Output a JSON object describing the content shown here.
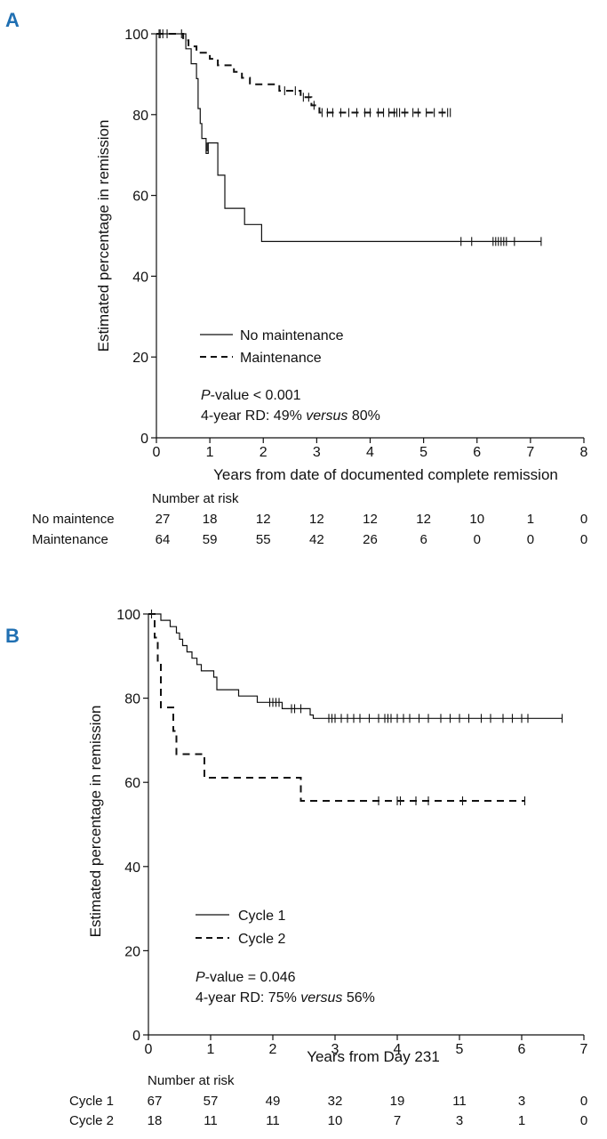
{
  "chart_data": [
    {
      "panel": "A",
      "type": "line",
      "subtype": "kaplan-meier",
      "ylabel": "Estimated percentage in remission",
      "xlabel": "Years from date of documented complete remission",
      "xlim": [
        0,
        8
      ],
      "ylim": [
        0,
        100
      ],
      "xticks": [
        0,
        1,
        2,
        3,
        4,
        5,
        6,
        7,
        8
      ],
      "yticks": [
        0,
        20,
        40,
        60,
        80,
        100
      ],
      "legend": {
        "placement": "middle-left",
        "entries": [
          {
            "label": "No maintenance",
            "style": "solid"
          },
          {
            "label": "Maintenance",
            "style": "dashed"
          }
        ]
      },
      "annotation": {
        "pvalue_italic": "P",
        "pvalue_rest": "-value < 0.001",
        "rd_prefix": "4-year RD: 49% ",
        "rd_italic": "versus",
        "rd_suffix": " 80%"
      },
      "series": [
        {
          "name": "No maintenance",
          "style": "solid",
          "steps": [
            [
              0,
              100
            ],
            [
              0.5,
              100
            ],
            [
              0.55,
              96.3
            ],
            [
              0.65,
              92.6
            ],
            [
              0.75,
              88.9
            ],
            [
              0.78,
              81.5
            ],
            [
              0.82,
              77.8
            ],
            [
              0.85,
              74.1
            ],
            [
              0.93,
              70.4
            ],
            [
              0.97,
              73
            ],
            [
              1.15,
              65
            ],
            [
              1.28,
              56.8
            ],
            [
              1.65,
              52.8
            ],
            [
              1.97,
              48.6
            ],
            [
              7.2,
              48.6
            ]
          ],
          "censor": [
            [
              0.07,
              100
            ],
            [
              0.12,
              100
            ],
            [
              0.2,
              100
            ],
            [
              0.47,
              100
            ],
            [
              0.95,
              72
            ],
            [
              5.7,
              48.6
            ],
            [
              5.9,
              48.6
            ],
            [
              6.3,
              48.6
            ],
            [
              6.35,
              48.6
            ],
            [
              6.4,
              48.6
            ],
            [
              6.45,
              48.6
            ],
            [
              6.5,
              48.6
            ],
            [
              6.55,
              48.6
            ],
            [
              6.7,
              48.6
            ],
            [
              7.2,
              48.6
            ]
          ]
        },
        {
          "name": "Maintenance",
          "style": "dashed",
          "steps": [
            [
              0,
              100
            ],
            [
              0.45,
              100
            ],
            [
              0.5,
              98.4
            ],
            [
              0.6,
              96.9
            ],
            [
              0.75,
              95.3
            ],
            [
              1.0,
              93.8
            ],
            [
              1.15,
              92.2
            ],
            [
              1.45,
              90.6
            ],
            [
              1.6,
              89.1
            ],
            [
              1.75,
              87.5
            ],
            [
              2.3,
              85.9
            ],
            [
              2.7,
              84.3
            ],
            [
              2.9,
              82.3
            ],
            [
              3.05,
              80.5
            ],
            [
              5.5,
              80.5
            ]
          ],
          "censor": [
            [
              0.05,
              100
            ],
            [
              2.4,
              85.9
            ],
            [
              2.6,
              85.9
            ],
            [
              2.75,
              84.3
            ],
            [
              2.85,
              84.3
            ],
            [
              2.95,
              82.3
            ],
            [
              3.1,
              80.5
            ],
            [
              3.2,
              80.5
            ],
            [
              3.3,
              80.5
            ],
            [
              3.45,
              80.5
            ],
            [
              3.6,
              80.5
            ],
            [
              3.75,
              80.5
            ],
            [
              3.9,
              80.5
            ],
            [
              4.0,
              80.5
            ],
            [
              4.15,
              80.5
            ],
            [
              4.25,
              80.5
            ],
            [
              4.35,
              80.5
            ],
            [
              4.45,
              80.5
            ],
            [
              4.5,
              80.5
            ],
            [
              4.55,
              80.5
            ],
            [
              4.65,
              80.5
            ],
            [
              4.8,
              80.5
            ],
            [
              4.9,
              80.5
            ],
            [
              5.05,
              80.5
            ],
            [
              5.2,
              80.5
            ],
            [
              5.35,
              80.5
            ],
            [
              5.45,
              80.5
            ],
            [
              5.5,
              80.5
            ]
          ]
        }
      ],
      "risk_table": {
        "title": "Number at risk",
        "rows": [
          {
            "label": "No maintence",
            "values": [
              "27",
              "18",
              "12",
              "12",
              "12",
              "12",
              "10",
              "1",
              "0"
            ]
          },
          {
            "label": "Maintenance",
            "values": [
              "64",
              "59",
              "55",
              "42",
              "26",
              "6",
              "0",
              "0",
              "0"
            ]
          }
        ]
      }
    },
    {
      "panel": "B",
      "type": "line",
      "subtype": "kaplan-meier",
      "ylabel": "Estimated percentage in remission",
      "xlabel": "Years from Day 231",
      "xlim": [
        0,
        7
      ],
      "ylim": [
        0,
        100
      ],
      "xticks": [
        0,
        1,
        2,
        3,
        4,
        5,
        6,
        7
      ],
      "yticks": [
        0,
        20,
        40,
        60,
        80,
        100
      ],
      "legend": {
        "placement": "middle-left",
        "entries": [
          {
            "label": "Cycle 1",
            "style": "solid"
          },
          {
            "label": "Cycle 2",
            "style": "dashed"
          }
        ]
      },
      "annotation": {
        "pvalue_italic": "P",
        "pvalue_rest": "-value = 0.046",
        "rd_prefix": "4-year RD: 75% ",
        "rd_italic": "versus",
        "rd_suffix": " 56%"
      },
      "series": [
        {
          "name": "Cycle 1",
          "style": "solid",
          "steps": [
            [
              0,
              100
            ],
            [
              0.15,
              100
            ],
            [
              0.2,
              98.5
            ],
            [
              0.35,
              97
            ],
            [
              0.45,
              95.5
            ],
            [
              0.5,
              94
            ],
            [
              0.55,
              92.5
            ],
            [
              0.62,
              91
            ],
            [
              0.7,
              89.5
            ],
            [
              0.78,
              88
            ],
            [
              0.85,
              86.5
            ],
            [
              1.05,
              85
            ],
            [
              1.1,
              82
            ],
            [
              1.45,
              80.5
            ],
            [
              1.75,
              79
            ],
            [
              2.15,
              77.5
            ],
            [
              2.6,
              76
            ],
            [
              2.65,
              75.2
            ],
            [
              6.65,
              75.2
            ]
          ],
          "censor": [
            [
              0.05,
              100
            ],
            [
              1.95,
              79
            ],
            [
              2.0,
              79
            ],
            [
              2.05,
              79
            ],
            [
              2.1,
              79
            ],
            [
              2.3,
              77.5
            ],
            [
              2.35,
              77.5
            ],
            [
              2.45,
              77.5
            ],
            [
              2.9,
              75.2
            ],
            [
              2.95,
              75.2
            ],
            [
              3.0,
              75.2
            ],
            [
              3.1,
              75.2
            ],
            [
              3.2,
              75.2
            ],
            [
              3.3,
              75.2
            ],
            [
              3.4,
              75.2
            ],
            [
              3.55,
              75.2
            ],
            [
              3.7,
              75.2
            ],
            [
              3.8,
              75.2
            ],
            [
              3.85,
              75.2
            ],
            [
              3.9,
              75.2
            ],
            [
              4.0,
              75.2
            ],
            [
              4.1,
              75.2
            ],
            [
              4.2,
              75.2
            ],
            [
              4.35,
              75.2
            ],
            [
              4.5,
              75.2
            ],
            [
              4.7,
              75.2
            ],
            [
              4.85,
              75.2
            ],
            [
              5.0,
              75.2
            ],
            [
              5.15,
              75.2
            ],
            [
              5.35,
              75.2
            ],
            [
              5.5,
              75.2
            ],
            [
              5.7,
              75.2
            ],
            [
              5.85,
              75.2
            ],
            [
              6.0,
              75.2
            ],
            [
              6.1,
              75.2
            ],
            [
              6.65,
              75.2
            ]
          ]
        },
        {
          "name": "Cycle 2",
          "style": "dashed",
          "steps": [
            [
              0,
              100
            ],
            [
              0.07,
              100
            ],
            [
              0.1,
              94.4
            ],
            [
              0.15,
              88.9
            ],
            [
              0.2,
              77.8
            ],
            [
              0.4,
              72.2
            ],
            [
              0.45,
              66.7
            ],
            [
              0.9,
              61.1
            ],
            [
              2.45,
              55.6
            ],
            [
              6.05,
              55.6
            ]
          ],
          "censor": [
            [
              3.7,
              55.6
            ],
            [
              4.0,
              55.6
            ],
            [
              4.05,
              55.6
            ],
            [
              4.3,
              55.6
            ],
            [
              4.5,
              55.6
            ],
            [
              5.05,
              55.6
            ],
            [
              6.05,
              55.6
            ]
          ]
        }
      ],
      "risk_table": {
        "title": "Number at risk",
        "rows": [
          {
            "label": "Cycle 1",
            "values": [
              "67",
              "57",
              "49",
              "32",
              "19",
              "11",
              "3",
              "0"
            ]
          },
          {
            "label": "Cycle 2",
            "values": [
              "18",
              "11",
              "11",
              "10",
              "7",
              "3",
              "1",
              "0"
            ]
          }
        ]
      }
    }
  ]
}
